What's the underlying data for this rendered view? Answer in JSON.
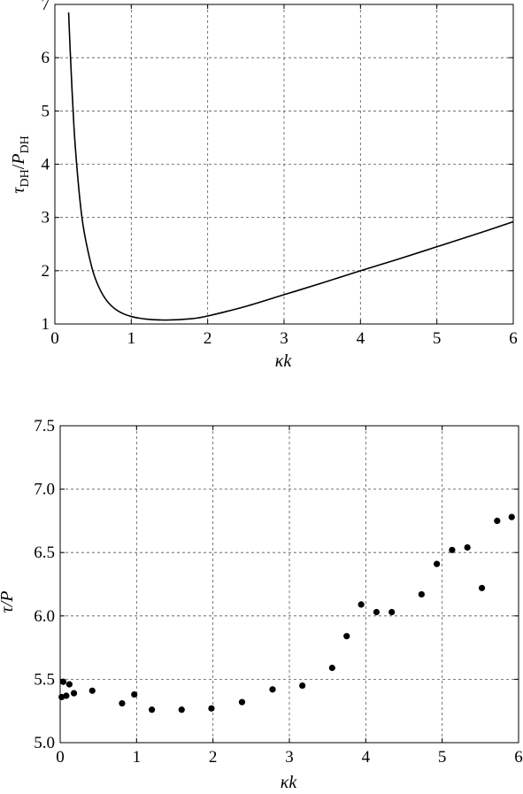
{
  "chart_data": [
    {
      "type": "line",
      "title": "",
      "xlabel": "κk",
      "ylabel": {
        "main": "τ",
        "sub1": "DH",
        "slash": "/",
        "main2": "P",
        "sub2": "DH"
      },
      "xlim": [
        0,
        6
      ],
      "ylim": [
        1,
        7
      ],
      "xticks": [
        "0",
        "1",
        "2",
        "3",
        "4",
        "5",
        "6"
      ],
      "yticks": [
        "1",
        "2",
        "3",
        "4",
        "5",
        "6",
        "7"
      ],
      "grid": true,
      "series": [
        {
          "x": [
            0.18,
            0.2,
            0.25,
            0.3,
            0.35,
            0.4,
            0.5,
            0.6,
            0.7,
            0.8,
            0.9,
            1.0,
            1.1,
            1.2,
            1.3,
            1.4,
            1.5,
            1.6,
            1.8,
            2.0,
            2.5,
            3.0,
            3.5,
            4.0,
            4.5,
            5.0,
            5.5,
            6.0
          ],
          "y": [
            6.85,
            6.15,
            4.7,
            3.75,
            3.05,
            2.6,
            1.98,
            1.62,
            1.4,
            1.27,
            1.19,
            1.14,
            1.11,
            1.09,
            1.08,
            1.075,
            1.075,
            1.08,
            1.1,
            1.15,
            1.33,
            1.55,
            1.77,
            2.0,
            2.22,
            2.45,
            2.68,
            2.92
          ]
        }
      ]
    },
    {
      "type": "scatter",
      "title": "",
      "xlabel": "κk",
      "ylabel": "τ/P",
      "xlim": [
        0,
        6
      ],
      "ylim": [
        5.0,
        7.5
      ],
      "xticks": [
        "0",
        "1",
        "2",
        "3",
        "4",
        "5",
        "6"
      ],
      "yticks": [
        "5.0",
        "5.5",
        "6.0",
        "6.5",
        "7.0",
        "7.5"
      ],
      "grid": true,
      "series": [
        {
          "x": [
            0.02,
            0.04,
            0.08,
            0.12,
            0.18,
            0.42,
            0.81,
            0.97,
            1.2,
            1.59,
            1.98,
            2.38,
            2.78,
            3.17,
            3.56,
            3.75,
            3.94,
            4.14,
            4.34,
            4.73,
            4.93,
            5.13,
            5.33,
            5.52,
            5.72,
            5.91
          ],
          "y": [
            5.36,
            5.48,
            5.37,
            5.46,
            5.39,
            5.41,
            5.31,
            5.38,
            5.26,
            5.26,
            5.27,
            5.32,
            5.42,
            5.45,
            5.59,
            5.84,
            6.09,
            6.03,
            6.03,
            6.17,
            6.41,
            6.52,
            6.54,
            6.22,
            6.75,
            6.78
          ]
        }
      ]
    }
  ]
}
